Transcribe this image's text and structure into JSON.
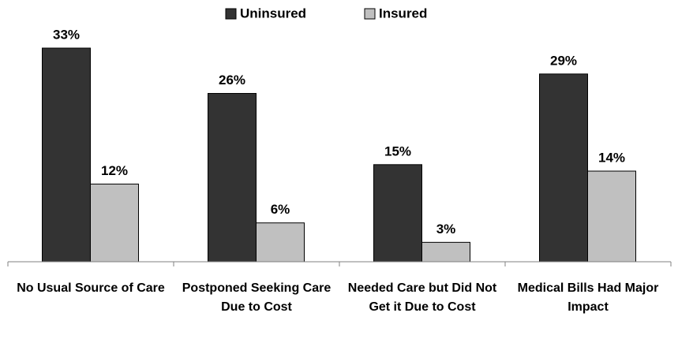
{
  "chart_data": {
    "type": "bar",
    "categories": [
      "No Usual Source of Care",
      "Postponed Seeking Care Due to Cost",
      "Needed Care but Did Not Get it Due to Cost",
      "Medical Bills Had Major Impact"
    ],
    "series": [
      {
        "name": "Uninsured",
        "color": "#333333",
        "values": [
          33,
          26,
          15,
          29
        ],
        "value_labels": [
          "33%",
          "26%",
          "15%",
          "29%"
        ]
      },
      {
        "name": "Insured",
        "color": "#c0c0c0",
        "values": [
          12,
          6,
          3,
          14
        ],
        "value_labels": [
          "12%",
          "6%",
          "3%",
          "14%"
        ]
      }
    ],
    "legend": "top"
  }
}
